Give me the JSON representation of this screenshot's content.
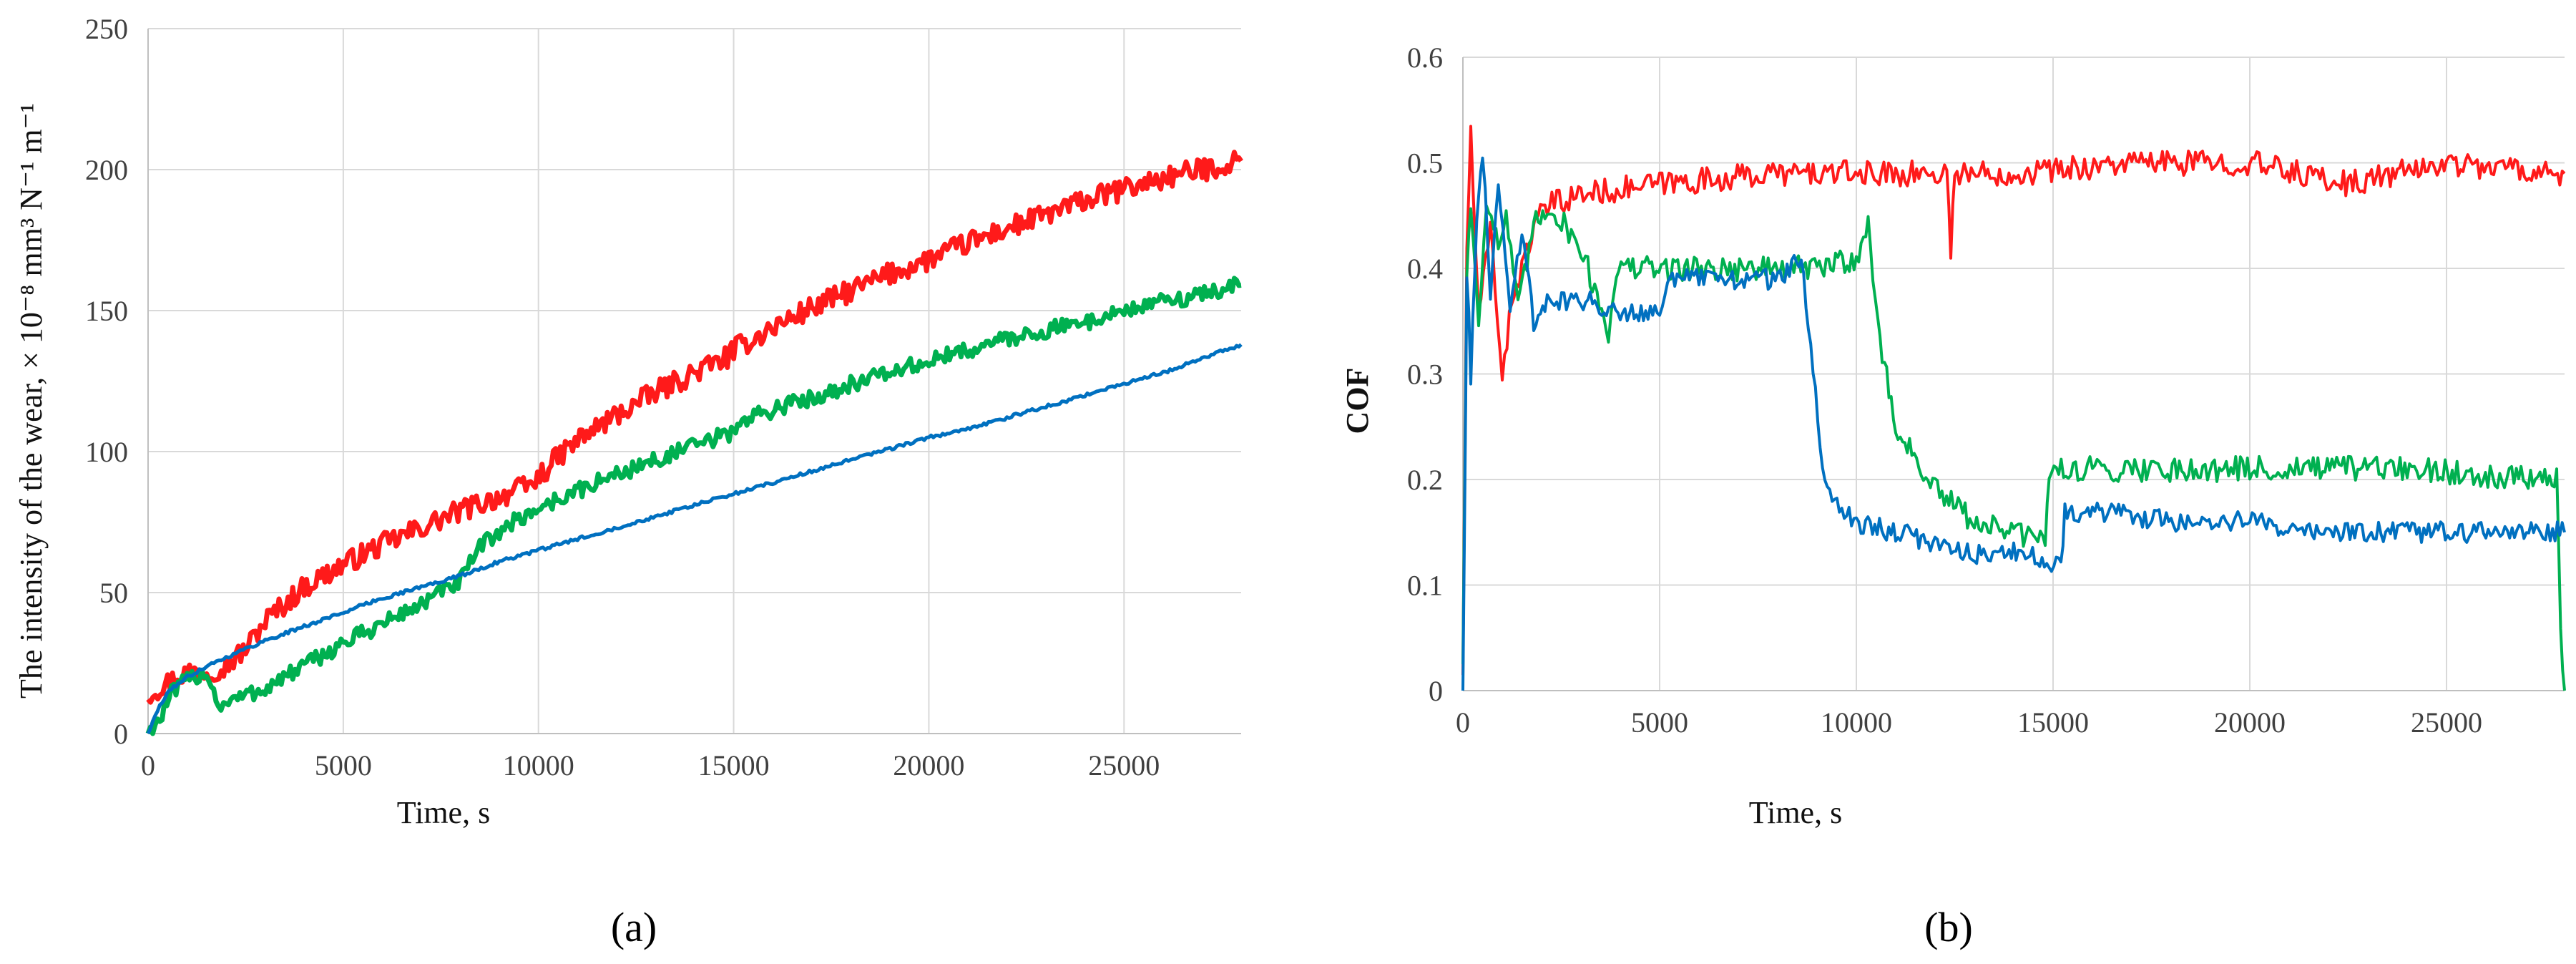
{
  "colors": {
    "red": "#ff1a1a",
    "green": "#00b050",
    "blue": "#0070c0",
    "grid": "#d9d9d9"
  },
  "chart_data": [
    {
      "type": "line",
      "panel_label": "(a)",
      "xlabel": "Time, s",
      "ylabel": "The intensity of the wear, × 10⁻⁸ mm³ N⁻¹ m⁻¹",
      "xlim": [
        0,
        28000
      ],
      "ylim": [
        0,
        250
      ],
      "xticks": [
        0,
        5000,
        10000,
        15000,
        20000,
        25000
      ],
      "yticks": [
        0,
        50,
        100,
        150,
        200,
        250
      ],
      "grid": true,
      "series": [
        {
          "color": "red",
          "noise": 4,
          "x": [
            0,
            500,
            1000,
            1500,
            2000,
            2500,
            3000,
            4000,
            5000,
            6000,
            7000,
            8000,
            9000,
            9800,
            10500,
            11000,
            12000,
            13000,
            14000,
            14900,
            15000,
            16000,
            17000,
            18000,
            19000,
            20000,
            21000,
            22000,
            23000,
            24000,
            25000,
            26000,
            27000,
            28000
          ],
          "y": [
            14,
            18,
            22,
            22,
            24,
            30,
            40,
            52,
            60,
            67,
            73,
            79,
            84,
            88,
            98,
            104,
            113,
            121,
            128,
            134,
            136,
            144,
            151,
            157,
            163,
            168,
            174,
            179,
            184,
            189,
            193,
            197,
            200,
            203
          ]
        },
        {
          "color": "green",
          "noise": 3,
          "x": [
            0,
            300,
            600,
            1000,
            1500,
            1800,
            2000,
            3000,
            4000,
            5000,
            6000,
            7000,
            8000,
            8500,
            9000,
            9500,
            10000,
            11000,
            12000,
            13000,
            14000,
            15000,
            15100,
            16000,
            17000,
            18000,
            19000,
            20000,
            21000,
            22000,
            23000,
            24000,
            25000,
            26000,
            27000,
            28000
          ],
          "y": [
            0,
            5,
            14,
            19,
            22,
            10,
            11,
            16,
            24,
            32,
            39,
            46,
            54,
            66,
            72,
            76,
            80,
            86,
            92,
            97,
            102,
            107,
            110,
            115,
            119,
            124,
            128,
            132,
            136,
            140,
            143,
            146,
            150,
            153,
            156,
            159
          ]
        },
        {
          "color": "blue",
          "noise": 0.6,
          "x": [
            0,
            300,
            600,
            1000,
            1500,
            2000,
            2500,
            3000,
            4000,
            5000,
            6000,
            7000,
            8000,
            9000,
            10000,
            11000,
            12000,
            13000,
            14000,
            15000,
            16000,
            17000,
            18000,
            19000,
            20000,
            21000,
            22000,
            23000,
            24000,
            25000,
            26000,
            27000,
            28000
          ],
          "y": [
            0,
            10,
            16,
            20,
            24,
            27,
            30,
            33,
            38,
            43,
            48,
            52,
            56,
            61,
            65,
            69,
            73,
            77,
            81,
            85,
            89,
            93,
            97,
            101,
            105,
            108,
            112,
            116,
            120,
            124,
            128,
            133,
            138
          ]
        }
      ]
    },
    {
      "type": "line",
      "panel_label": "(b)",
      "xlabel": "Time, s",
      "ylabel": "COF",
      "xlim": [
        0,
        28000
      ],
      "ylim": [
        0,
        0.6
      ],
      "xticks": [
        0,
        5000,
        10000,
        15000,
        20000,
        25000
      ],
      "yticks": [
        0,
        0.1,
        0.2,
        0.3,
        0.4,
        0.5,
        0.6
      ],
      "grid": true,
      "series": [
        {
          "color": "red",
          "noise": 0.012,
          "x": [
            0,
            100,
            200,
            400,
            700,
            1000,
            1300,
            1500,
            1800,
            2200,
            3000,
            5000,
            8000,
            11000,
            12300,
            12400,
            12500,
            14000,
            17000,
            20000,
            22500,
            25000,
            28000
          ],
          "y": [
            0.02,
            0.42,
            0.53,
            0.35,
            0.44,
            0.3,
            0.38,
            0.4,
            0.44,
            0.46,
            0.47,
            0.48,
            0.49,
            0.49,
            0.49,
            0.42,
            0.49,
            0.49,
            0.5,
            0.5,
            0.48,
            0.5,
            0.49
          ]
        },
        {
          "color": "green",
          "noise": 0.012,
          "x": [
            0,
            100,
            200,
            400,
            600,
            900,
            1100,
            1400,
            1800,
            2200,
            3000,
            3700,
            3900,
            4200,
            6000,
            8000,
            9000,
            10000,
            10300,
            10600,
            11000,
            12000,
            13000,
            14000,
            14800,
            14900,
            16000,
            20000,
            24000,
            27800,
            27900,
            28000
          ],
          "y": [
            0.03,
            0.4,
            0.46,
            0.35,
            0.47,
            0.42,
            0.45,
            0.36,
            0.44,
            0.46,
            0.42,
            0.34,
            0.4,
            0.4,
            0.4,
            0.4,
            0.4,
            0.41,
            0.44,
            0.33,
            0.25,
            0.19,
            0.16,
            0.15,
            0.14,
            0.21,
            0.21,
            0.21,
            0.21,
            0.2,
            0.05,
            0.0
          ]
        },
        {
          "color": "blue",
          "noise": 0.01,
          "x": [
            0,
            100,
            200,
            350,
            500,
            700,
            900,
            1200,
            1500,
            1800,
            2200,
            3000,
            4000,
            5000,
            5200,
            6000,
            8000,
            8600,
            8900,
            9200,
            10000,
            11000,
            12000,
            13000,
            14000,
            15200,
            15300,
            16000,
            18000,
            20000,
            22000,
            24000,
            26000,
            28000
          ],
          "y": [
            0.0,
            0.4,
            0.3,
            0.44,
            0.51,
            0.38,
            0.48,
            0.36,
            0.44,
            0.35,
            0.37,
            0.37,
            0.36,
            0.36,
            0.39,
            0.39,
            0.39,
            0.41,
            0.3,
            0.19,
            0.16,
            0.15,
            0.14,
            0.13,
            0.13,
            0.12,
            0.17,
            0.17,
            0.16,
            0.16,
            0.15,
            0.15,
            0.15,
            0.15
          ]
        }
      ]
    }
  ]
}
